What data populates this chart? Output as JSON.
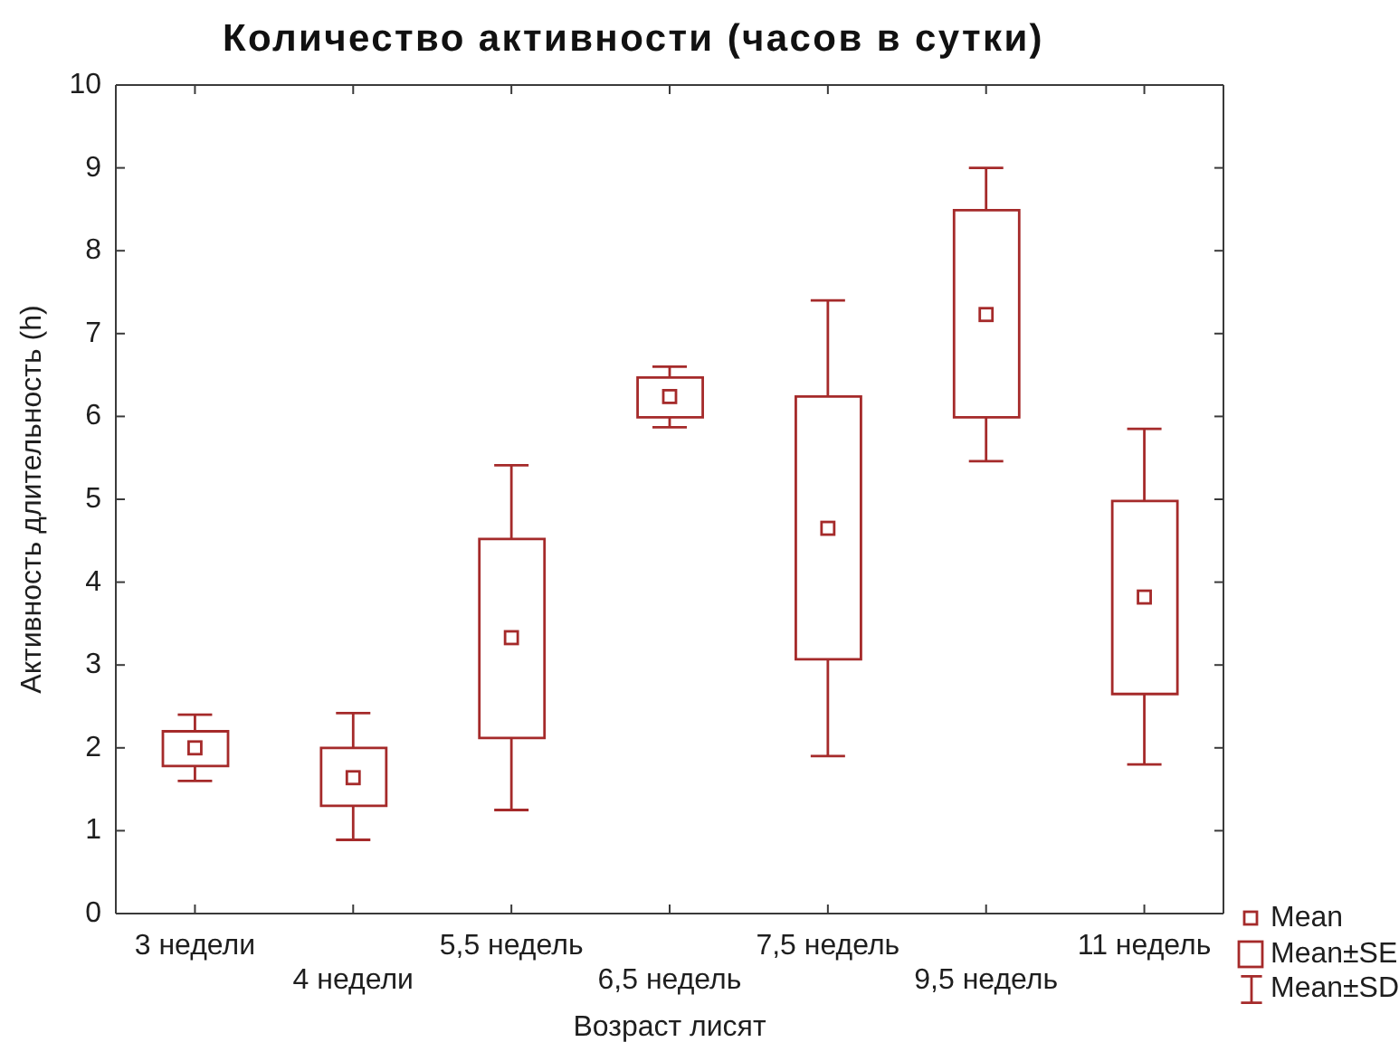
{
  "chart_data": {
    "type": "scatter",
    "title": "Количество активности (часов в сутки)",
    "xlabel": "Возраст лисят",
    "ylabel": "Активность длительность (h)",
    "categories": [
      "3 недели",
      "4 недели",
      "5,5 недель",
      "6,5 недель",
      "7,5 недель",
      "9,5 недель",
      "11 недель"
    ],
    "series": [
      {
        "name": "Mean",
        "color": "#a52a2a",
        "values": [
          2.0,
          1.64,
          3.33,
          6.24,
          4.65,
          7.23,
          3.82
        ],
        "errors": [
          [
            1.6,
            2.4
          ],
          [
            0.89,
            2.42
          ],
          [
            1.25,
            5.41
          ],
          [
            5.87,
            6.6
          ],
          [
            1.9,
            7.4
          ],
          [
            5.46,
            9.0
          ],
          [
            1.8,
            5.85
          ]
        ]
      },
      {
        "name": "Mean±SE",
        "type": "bar",
        "color": "#a52a2a",
        "base": [
          1.78,
          1.3,
          2.12,
          5.99,
          3.07,
          5.99,
          2.65
        ],
        "values": [
          0.42,
          0.7,
          2.4,
          0.48,
          3.17,
          2.5,
          2.33
        ]
      }
    ],
    "annotations": [
      "Mean±SD"
    ],
    "ylim": [
      0,
      10
    ],
    "yticks": [
      0,
      1,
      2,
      3,
      4,
      5,
      6,
      7,
      8,
      9,
      10
    ],
    "marker": "square",
    "legend": "bottom right"
  }
}
